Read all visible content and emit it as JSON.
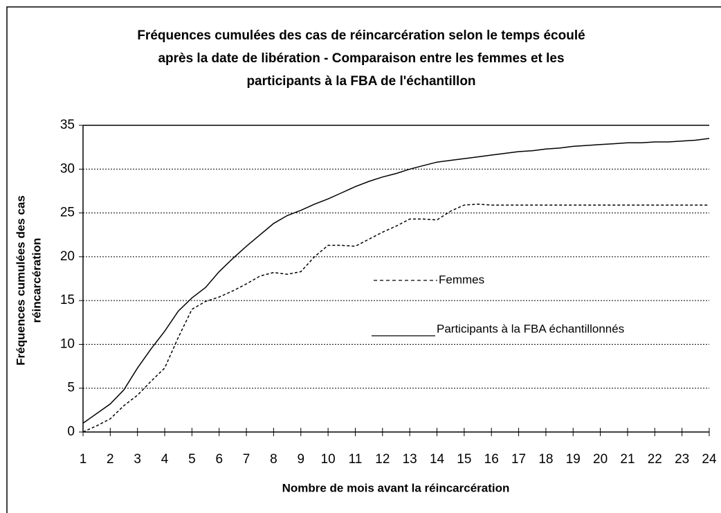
{
  "chart_data": {
    "type": "line",
    "title": [
      "Fréquences cumulées des cas de réincarcération selon le temps écoulé",
      "après la date de libération - Comparaison entre les femmes et les",
      "participants à la FBA de l'échantillon"
    ],
    "xlabel": "Nombre de mois avant la réincarcération",
    "ylabel": [
      "Fréquences cumulées des cas",
      "réincarcération"
    ],
    "x": [
      1,
      1.5,
      2,
      2.5,
      3,
      3.5,
      4,
      4.5,
      5,
      5.5,
      6,
      6.5,
      7,
      7.5,
      8,
      8.5,
      9,
      9.5,
      10,
      10.5,
      11,
      11.5,
      12,
      12.5,
      13,
      13.5,
      14,
      14.5,
      15,
      15.5,
      16,
      16.5,
      17,
      17.5,
      18,
      18.5,
      19,
      19.5,
      20,
      20.5,
      21,
      21.5,
      22,
      22.5,
      23,
      23.5,
      24
    ],
    "series": [
      {
        "name": "Femmes",
        "color": "#000000",
        "dash": true,
        "values": [
          0,
          0.7,
          1.5,
          3.0,
          4.2,
          5.8,
          7.3,
          10.8,
          14.0,
          14.9,
          15.4,
          16.1,
          16.9,
          17.8,
          18.2,
          18.0,
          18.3,
          20.0,
          21.3,
          21.3,
          21.2,
          22.0,
          22.8,
          23.5,
          24.3,
          24.3,
          24.2,
          25.2,
          25.9,
          26.0,
          25.9,
          25.9,
          25.9,
          25.9,
          25.9,
          25.9,
          25.9,
          25.9,
          25.9,
          25.9,
          25.9,
          25.9,
          25.9,
          25.9,
          25.9,
          25.9,
          25.9
        ]
      },
      {
        "name": "Participants à la FBA échantillonnés",
        "color": "#000000",
        "dash": false,
        "values": [
          1.0,
          2.1,
          3.2,
          4.8,
          7.3,
          9.5,
          11.5,
          13.8,
          15.3,
          16.5,
          18.3,
          19.8,
          21.2,
          22.5,
          23.8,
          24.7,
          25.3,
          26.0,
          26.6,
          27.3,
          28.0,
          28.6,
          29.1,
          29.5,
          30.0,
          30.4,
          30.8,
          31.0,
          31.2,
          31.4,
          31.6,
          31.8,
          32.0,
          32.1,
          32.3,
          32.4,
          32.6,
          32.7,
          32.8,
          32.9,
          33.0,
          33.0,
          33.1,
          33.1,
          33.2,
          33.3,
          33.5
        ]
      }
    ],
    "xlim": [
      1,
      24
    ],
    "xticks": [
      1,
      2,
      3,
      4,
      5,
      6,
      7,
      8,
      9,
      10,
      11,
      12,
      13,
      14,
      15,
      16,
      17,
      18,
      19,
      20,
      21,
      22,
      23,
      24
    ],
    "ylim": [
      0,
      35
    ],
    "yticks": [
      0,
      5,
      10,
      15,
      20,
      25,
      30,
      35
    ],
    "grid": true
  }
}
